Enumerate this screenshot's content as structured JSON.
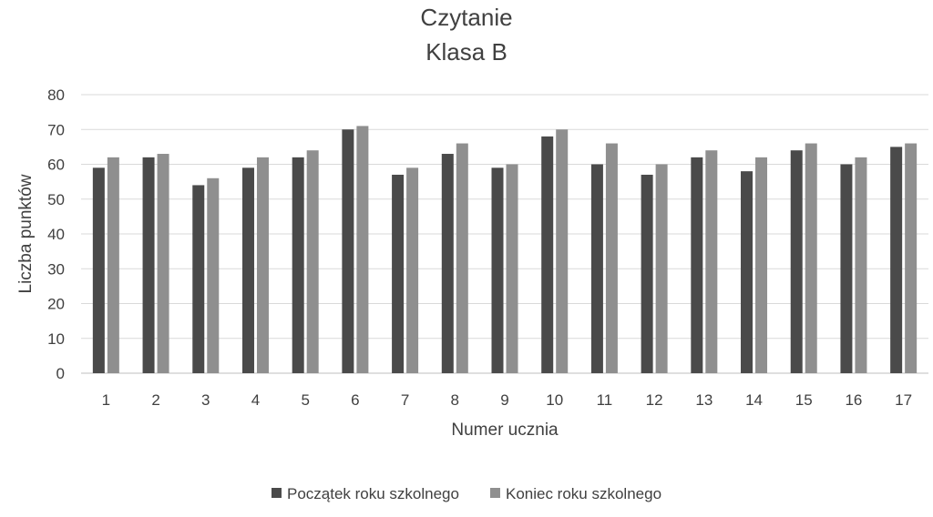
{
  "chart_data": {
    "type": "bar",
    "title": "Czytanie",
    "subtitle": "Klasa B",
    "xlabel": "Numer ucznia",
    "ylabel": "Liczba punktów",
    "ylim": [
      0,
      80
    ],
    "yticks": [
      "0",
      "10",
      "20",
      "30",
      "40",
      "50",
      "60",
      "70",
      "80"
    ],
    "grid": true,
    "legend_position": "bottom",
    "categories": [
      "1",
      "2",
      "3",
      "4",
      "5",
      "6",
      "7",
      "8",
      "9",
      "10",
      "11",
      "12",
      "13",
      "14",
      "15",
      "16",
      "17"
    ],
    "series": [
      {
        "name": "Początek roku szkolnego",
        "color": "#4a4a4a",
        "values": [
          59,
          62,
          54,
          59,
          62,
          70,
          57,
          63,
          59,
          68,
          60,
          57,
          62,
          58,
          64,
          60,
          65
        ]
      },
      {
        "name": "Koniec roku szkolnego",
        "color": "#8f8f8f",
        "values": [
          62,
          63,
          56,
          62,
          64,
          71,
          59,
          66,
          60,
          70,
          66,
          60,
          64,
          62,
          66,
          62,
          66
        ]
      }
    ]
  }
}
